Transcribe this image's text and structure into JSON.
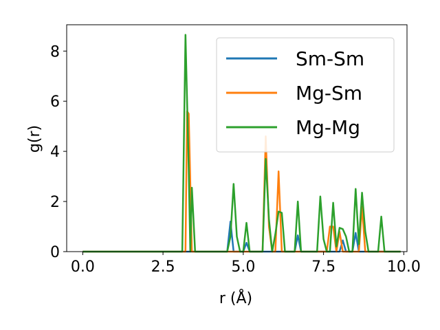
{
  "chart_data": {
    "type": "line",
    "xlabel": "r (Å)",
    "ylabel": "g(r)",
    "xlim": [
      -0.5,
      10.1
    ],
    "ylim": [
      0,
      9.05
    ],
    "xticks": [
      0.0,
      2.5,
      5.0,
      7.5,
      10.0
    ],
    "xtick_labels": [
      "0.0",
      "2.5",
      "5.0",
      "7.5",
      "10.0"
    ],
    "yticks": [
      0,
      2,
      4,
      6,
      8
    ],
    "ytick_labels": [
      "0",
      "2",
      "4",
      "6",
      "8"
    ],
    "grid": false,
    "legend_position": "top-right",
    "series": [
      {
        "name": "Sm-Sm",
        "color": "#1f77b4",
        "points": [
          [
            0,
            0
          ],
          [
            3.1,
            0
          ],
          [
            3.2,
            0
          ],
          [
            3.3,
            0
          ],
          [
            4.5,
            0
          ],
          [
            4.6,
            1.2
          ],
          [
            4.7,
            0
          ],
          [
            5.0,
            0
          ],
          [
            5.1,
            0.35
          ],
          [
            5.2,
            0
          ],
          [
            6.6,
            0
          ],
          [
            6.7,
            0.65
          ],
          [
            6.8,
            0
          ],
          [
            8.0,
            0
          ],
          [
            8.1,
            0.45
          ],
          [
            8.2,
            0
          ],
          [
            8.4,
            0
          ],
          [
            8.5,
            0.75
          ],
          [
            8.6,
            0
          ],
          [
            9.9,
            0
          ]
        ]
      },
      {
        "name": "Mg-Sm",
        "color": "#ff7f0e",
        "points": [
          [
            0,
            0
          ],
          [
            3.2,
            0
          ],
          [
            3.25,
            5.6
          ],
          [
            3.3,
            5.5
          ],
          [
            3.4,
            0
          ],
          [
            5.6,
            0
          ],
          [
            5.7,
            4.6
          ],
          [
            5.8,
            1.0
          ],
          [
            5.9,
            0
          ],
          [
            6.0,
            0
          ],
          [
            6.1,
            3.2
          ],
          [
            6.2,
            0
          ],
          [
            7.6,
            0
          ],
          [
            7.7,
            1.0
          ],
          [
            7.8,
            1.0
          ],
          [
            7.9,
            0
          ],
          [
            8.0,
            0.8
          ],
          [
            8.1,
            0
          ],
          [
            8.6,
            0
          ],
          [
            8.7,
            1.8
          ],
          [
            8.8,
            0
          ],
          [
            9.9,
            0
          ]
        ]
      },
      {
        "name": "Mg-Mg",
        "color": "#2ca02c",
        "points": [
          [
            0,
            0
          ],
          [
            3.1,
            0
          ],
          [
            3.2,
            8.65
          ],
          [
            3.3,
            3.3
          ],
          [
            3.35,
            0
          ],
          [
            3.4,
            2.55
          ],
          [
            3.5,
            0
          ],
          [
            4.5,
            0
          ],
          [
            4.6,
            0.6
          ],
          [
            4.7,
            2.7
          ],
          [
            4.8,
            0.6
          ],
          [
            4.9,
            0
          ],
          [
            5.0,
            0
          ],
          [
            5.1,
            1.15
          ],
          [
            5.2,
            0
          ],
          [
            5.6,
            0
          ],
          [
            5.7,
            3.7
          ],
          [
            5.8,
            1.3
          ],
          [
            5.9,
            0
          ],
          [
            6.0,
            0.7
          ],
          [
            6.1,
            1.6
          ],
          [
            6.2,
            1.55
          ],
          [
            6.3,
            0
          ],
          [
            6.6,
            0
          ],
          [
            6.7,
            2.0
          ],
          [
            6.8,
            0
          ],
          [
            7.3,
            0
          ],
          [
            7.4,
            2.2
          ],
          [
            7.5,
            0.5
          ],
          [
            7.6,
            0
          ],
          [
            7.7,
            0
          ],
          [
            7.8,
            1.95
          ],
          [
            7.9,
            0.2
          ],
          [
            8.0,
            0.95
          ],
          [
            8.1,
            0.9
          ],
          [
            8.2,
            0.6
          ],
          [
            8.3,
            0
          ],
          [
            8.4,
            0
          ],
          [
            8.5,
            2.5
          ],
          [
            8.6,
            0.3
          ],
          [
            8.7,
            2.35
          ],
          [
            8.8,
            0.8
          ],
          [
            8.9,
            0
          ],
          [
            9.2,
            0
          ],
          [
            9.3,
            1.4
          ],
          [
            9.4,
            0
          ],
          [
            9.9,
            0
          ]
        ]
      }
    ]
  }
}
